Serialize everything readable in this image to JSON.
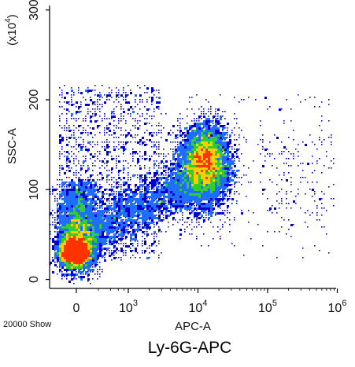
{
  "chart_data": {
    "type": "scatter",
    "title": "Ly-6G-APC",
    "xlabel": "APC-A",
    "ylabel": "SSC-A",
    "y_multiplier_label": "(x10",
    "y_multiplier_exponent": "4",
    "y_multiplier_close": ")",
    "event_count_label": "20000 Show",
    "x_scale": "biexponential",
    "x_ticks": [
      {
        "value": 0,
        "base": "0",
        "exp": ""
      },
      {
        "value": 1000,
        "base": "10",
        "exp": "3"
      },
      {
        "value": 10000,
        "base": "10",
        "exp": "4"
      },
      {
        "value": 100000,
        "base": "10",
        "exp": "5"
      },
      {
        "value": 1000000,
        "base": "10",
        "exp": "6"
      }
    ],
    "xlim": [
      -600,
      1000000
    ],
    "y_ticks": [
      {
        "value": 0,
        "label": "0"
      },
      {
        "value": 100,
        "label": "100"
      },
      {
        "value": 200,
        "label": "200"
      },
      {
        "value": 300,
        "label": "300"
      }
    ],
    "ylim": [
      -10,
      305
    ],
    "grid": false,
    "density_colors": [
      "#0000cc",
      "#1e6eff",
      "#33cc33",
      "#ffcc00",
      "#ff3300"
    ],
    "populations": [
      {
        "name_hint": "low-APC low-SSC cluster",
        "x_center": 0,
        "y_center": 30,
        "events": 7600
      },
      {
        "name_hint": "Ly-6G+ high-SSC cluster",
        "x_center": 15000,
        "y_center": 125,
        "events": 6400
      },
      {
        "name_hint": "negative high-SSC spread",
        "x_center": 0,
        "y_center": 120,
        "events": 2000
      },
      {
        "name_hint": "bridge",
        "x_center": 3000,
        "y_center": 90,
        "events": 2200
      },
      {
        "name_hint": "scattered",
        "x_center": 2000,
        "y_center": 100,
        "events": 1800
      }
    ]
  }
}
